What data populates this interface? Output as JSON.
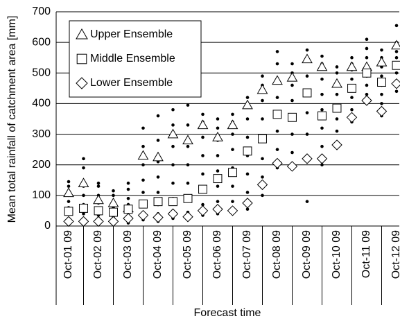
{
  "chart_data": {
    "type": "scatter",
    "y_label": "Mean total rainfall of catchment area [mm]",
    "x_label": "Forecast time",
    "categories": [
      "Oct-01 09",
      null,
      "Oct-02 09",
      null,
      "Oct-03 09",
      null,
      "Oct-04 09",
      null,
      "Oct-05 09",
      null,
      "Oct-06 09",
      null,
      "Oct-07 09",
      null,
      "Oct-08 09",
      null,
      "Oct-09 09",
      null,
      "Oct-10 09",
      null,
      "Oct-11 09",
      null,
      "Oct-12 09"
    ],
    "series": [
      {
        "name": "Upper Ensemble",
        "marker": "triangle",
        "color": "#000000",
        "values": [
          108,
          140,
          85,
          75,
          58,
          230,
          225,
          300,
          280,
          330,
          290,
          330,
          395,
          445,
          475,
          485,
          545,
          520,
          465,
          520,
          520,
          535,
          590
        ]
      },
      {
        "name": "Middle Ensemble",
        "marker": "square",
        "color": "#000000",
        "values": [
          48,
          58,
          50,
          45,
          55,
          72,
          80,
          80,
          90,
          120,
          155,
          175,
          245,
          285,
          365,
          355,
          435,
          360,
          385,
          450,
          500,
          470,
          525
        ]
      },
      {
        "name": "Lower Ensemble",
        "marker": "diamond",
        "color": "#000000",
        "values": [
          15,
          15,
          15,
          15,
          25,
          35,
          28,
          40,
          30,
          50,
          55,
          50,
          75,
          135,
          205,
          195,
          220,
          220,
          265,
          355,
          410,
          375,
          465
        ]
      }
    ],
    "members": [
      [
        5,
        25,
        40,
        60,
        80,
        100,
        130,
        145
      ],
      [
        5,
        20,
        40,
        70,
        100,
        130,
        190,
        220
      ],
      [
        5,
        20,
        35,
        55,
        75,
        100,
        130,
        140
      ],
      [
        5,
        15,
        30,
        45,
        60,
        80,
        100,
        115
      ],
      [
        10,
        20,
        35,
        50,
        70,
        90,
        120,
        140
      ],
      [
        20,
        40,
        70,
        110,
        150,
        200,
        260,
        320
      ],
      [
        15,
        40,
        70,
        110,
        160,
        210,
        280,
        360
      ],
      [
        25,
        50,
        90,
        140,
        200,
        260,
        330,
        380
      ],
      [
        20,
        45,
        90,
        140,
        200,
        260,
        330,
        395
      ],
      [
        35,
        70,
        120,
        170,
        230,
        290,
        340,
        365
      ],
      [
        40,
        80,
        130,
        180,
        230,
        280,
        320,
        350
      ],
      [
        40,
        80,
        130,
        190,
        250,
        300,
        340,
        365
      ],
      [
        55,
        110,
        170,
        230,
        290,
        350,
        400,
        420
      ],
      [
        100,
        160,
        220,
        290,
        350,
        410,
        460,
        490
      ],
      [
        190,
        250,
        310,
        370,
        420,
        470,
        530,
        570
      ],
      [
        190,
        240,
        300,
        360,
        410,
        460,
        500,
        530
      ],
      [
        80,
        230,
        300,
        370,
        430,
        490,
        540,
        575
      ],
      [
        200,
        260,
        320,
        380,
        430,
        480,
        530,
        555
      ],
      [
        260,
        310,
        350,
        390,
        430,
        470,
        500,
        520
      ],
      [
        340,
        380,
        420,
        450,
        480,
        510,
        530,
        550
      ],
      [
        400,
        430,
        460,
        490,
        520,
        550,
        580,
        610
      ],
      [
        360,
        400,
        430,
        460,
        490,
        520,
        550,
        575
      ],
      [
        440,
        470,
        500,
        520,
        550,
        570,
        600,
        655
      ]
    ],
    "ylim": [
      0,
      700
    ],
    "yticks": [
      0,
      100,
      200,
      300,
      400,
      500,
      600,
      700
    ],
    "grid": true,
    "legend": "upper left"
  }
}
